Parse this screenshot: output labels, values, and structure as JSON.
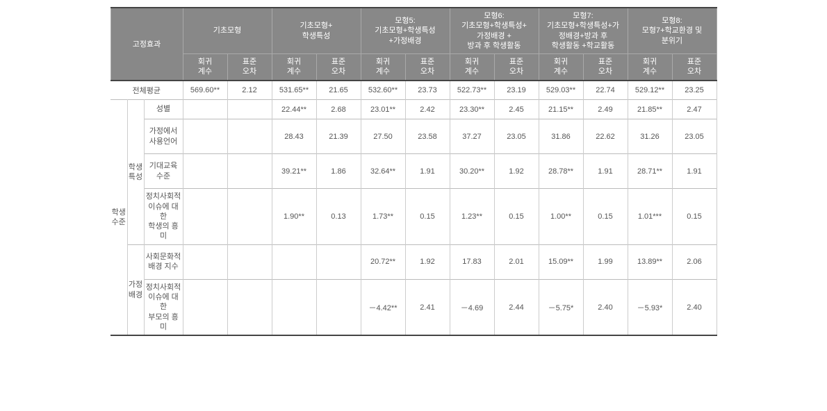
{
  "header": {
    "fixed_effect": "고정효과",
    "models": [
      "기초모형",
      "기초모형+\n학생특성",
      "모형5:\n기초모형+학생특성\n+가정배경",
      "모형6:\n기초모형+학생특성+\n가정배경 +\n방과 후 학생활동",
      "모형7:\n기초모형+학생특성+가\n정배경+방과 후\n학생활동 +학교활동",
      "모형8:\n모형7+학교환경 및\n분위기"
    ],
    "coef": "회귀\n계수",
    "se": "표준\n오차"
  },
  "rowGroups": {
    "student_level": "학생\n수준",
    "student_char": "학생\n특성",
    "family_bg": "가정\n배경"
  },
  "rows": {
    "overall_mean": {
      "label": "전체평균",
      "cells": [
        "569.60**",
        "2.12",
        "531.65**",
        "21.65",
        "532.60**",
        "23.73",
        "522.73**",
        "23.19",
        "529.03**",
        "22.74",
        "529.12**",
        "23.25"
      ]
    },
    "gender": {
      "label": "성별",
      "cells": [
        "",
        "",
        "22.44**",
        "2.68",
        "23.01**",
        "2.42",
        "23.30**",
        "2.45",
        "21.15**",
        "2.49",
        "21.85**",
        "2.47"
      ]
    },
    "home_lang": {
      "label": "가정에서\n사용언어",
      "cells": [
        "",
        "",
        "28.43",
        "21.39",
        "27.50",
        "23.58",
        "37.27",
        "23.05",
        "31.86",
        "22.62",
        "31.26",
        "23.05"
      ]
    },
    "expected_edu": {
      "label": "기대교육\n수준",
      "cells": [
        "",
        "",
        "39.21**",
        "1.86",
        "32.64**",
        "1.91",
        "30.20**",
        "1.92",
        "28.78**",
        "1.91",
        "28.71**",
        "1.91"
      ]
    },
    "political_interest": {
      "label": "정치사회적\n이슈에 대한\n학생의 흥미",
      "cells": [
        "",
        "",
        "1.90**",
        "0.13",
        "1.73**",
        "0.15",
        "1.23**",
        "0.15",
        "1.00**",
        "0.15",
        "1.01***",
        "0.15"
      ]
    },
    "sociocultural": {
      "label": "사회문화적\n배경 지수",
      "cells": [
        "",
        "",
        "",
        "",
        "20.72**",
        "1.92",
        "17.83",
        "2.01",
        "15.09**",
        "1.99",
        "13.89**",
        "2.06"
      ]
    },
    "parent_interest": {
      "label": "정치사회적\n이슈에 대한\n부모의 흥미",
      "cells": [
        "",
        "",
        "",
        "",
        "－4.42**",
        "2.41",
        "－4.69",
        "2.44",
        "－5.75*",
        "2.40",
        "－5.93*",
        "2.40"
      ]
    }
  }
}
